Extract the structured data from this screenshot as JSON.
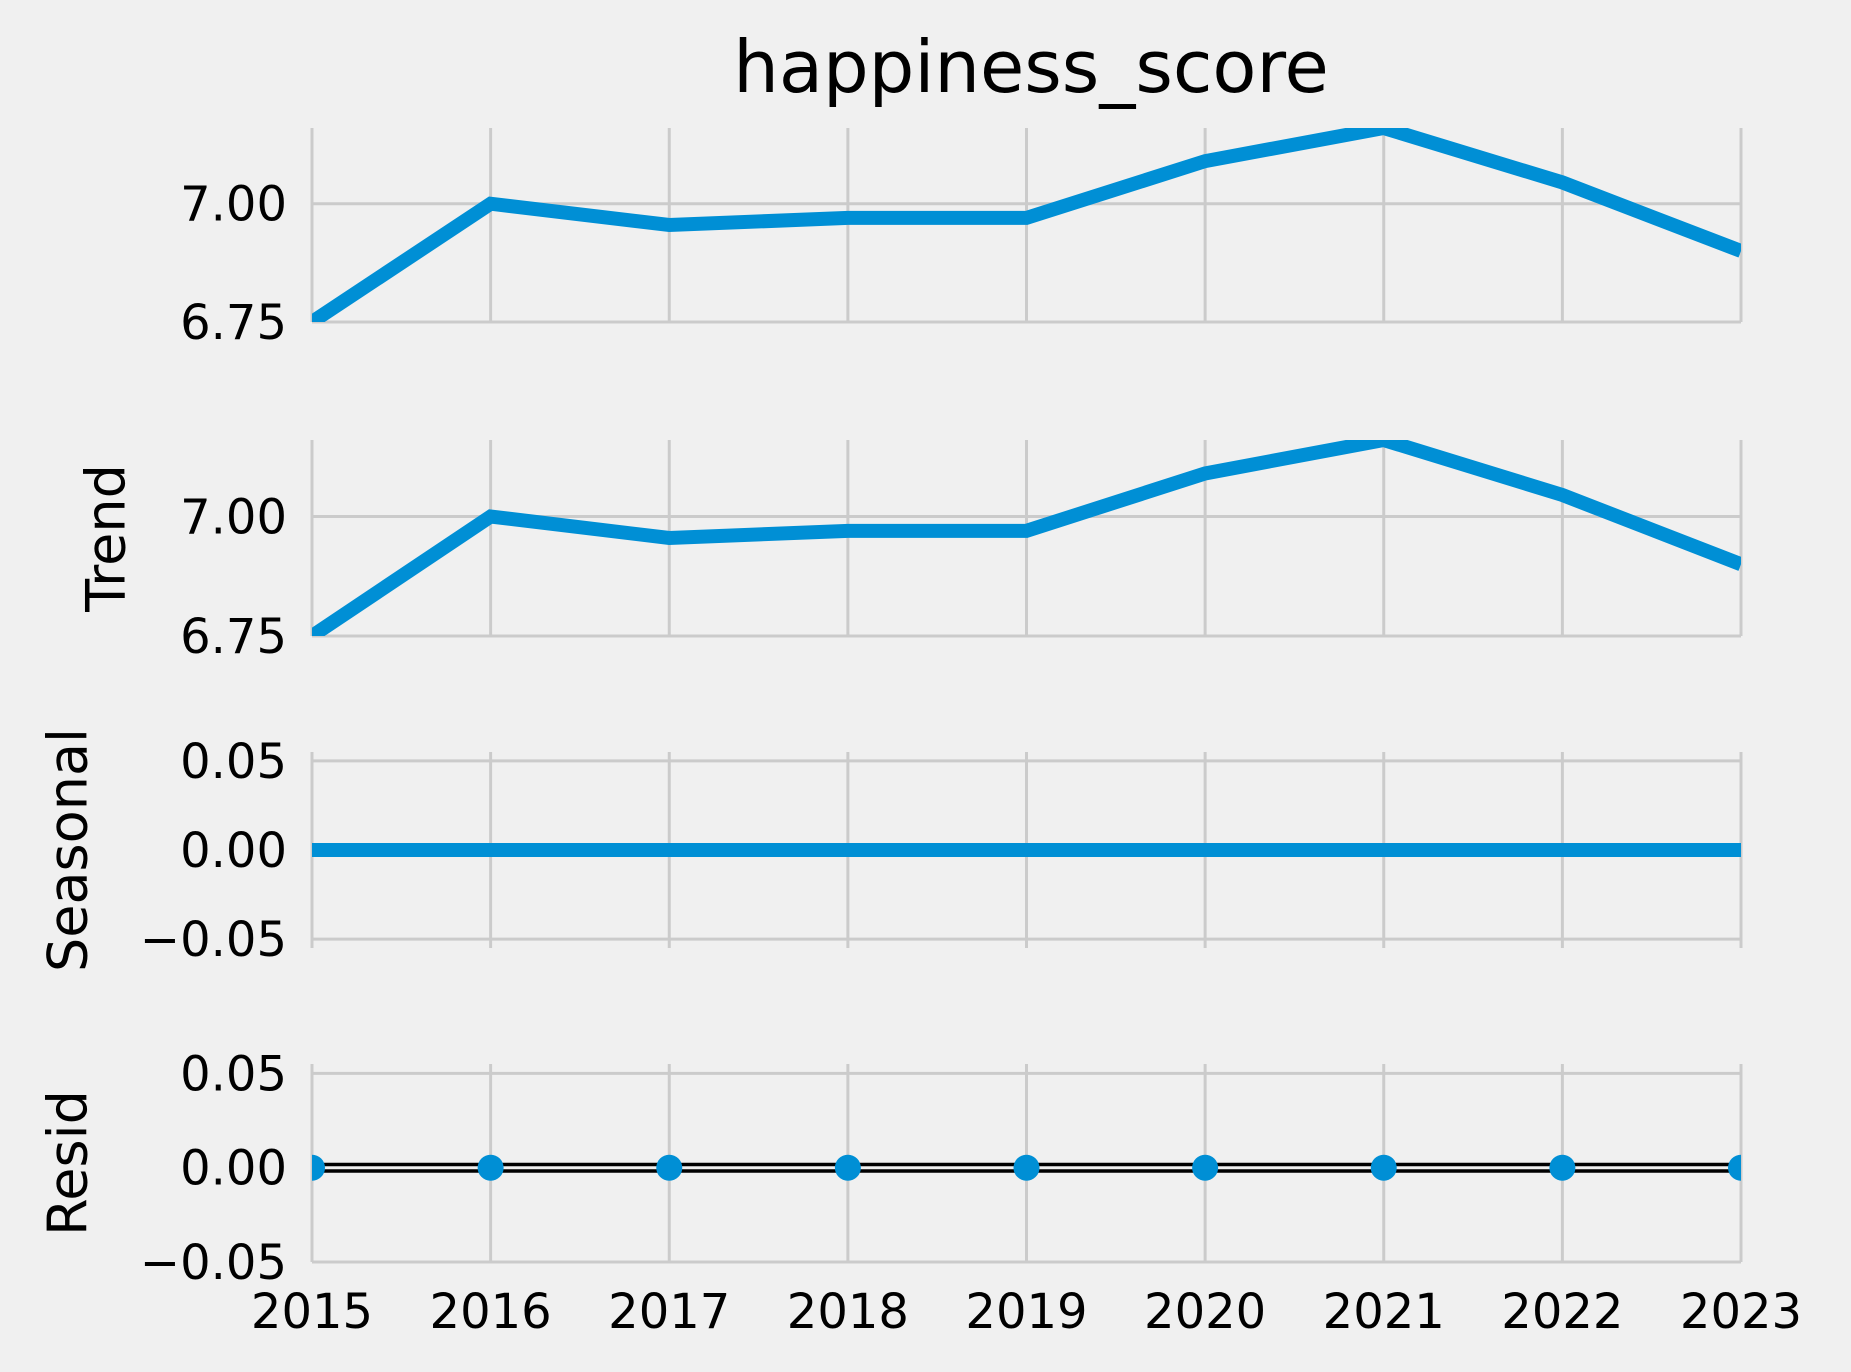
{
  "chart_data": {
    "type": "line",
    "title": "happiness_score",
    "x": [
      2015,
      2016,
      2017,
      2018,
      2019,
      2020,
      2021,
      2022,
      2023
    ],
    "x_tick_labels": [
      "2015",
      "2016",
      "2017",
      "2018",
      "2019",
      "2020",
      "2021",
      "2022",
      "2023"
    ],
    "xlim": [
      2015,
      2023
    ],
    "grid": true,
    "line_color": "#008fd5",
    "marker_color": "#008fd5",
    "zero_line_color": "#000000",
    "panels": [
      {
        "id": "observed",
        "ylabel": "",
        "type": "line",
        "values": [
          6.75,
          7.0,
          6.955,
          6.97,
          6.97,
          7.09,
          7.16,
          7.045,
          6.9
        ],
        "ylim": [
          6.75,
          7.16
        ],
        "yticks": [
          6.75,
          7.0
        ],
        "ytick_labels": [
          "6.75",
          "7.00"
        ]
      },
      {
        "id": "trend",
        "ylabel": "Trend",
        "type": "line",
        "values": [
          6.75,
          7.0,
          6.955,
          6.97,
          6.97,
          7.09,
          7.16,
          7.045,
          6.9
        ],
        "ylim": [
          6.75,
          7.16
        ],
        "yticks": [
          6.75,
          7.0
        ],
        "ytick_labels": [
          "6.75",
          "7.00"
        ]
      },
      {
        "id": "seasonal",
        "ylabel": "Seasonal",
        "type": "line",
        "values": [
          0,
          0,
          0,
          0,
          0,
          0,
          0,
          0,
          0
        ],
        "ylim": [
          -0.055,
          0.055
        ],
        "yticks": [
          -0.05,
          0.0,
          0.05
        ],
        "ytick_labels": [
          "−0.05",
          "0.00",
          "0.05"
        ]
      },
      {
        "id": "resid",
        "ylabel": "Resid",
        "type": "scatter",
        "values": [
          0,
          0,
          0,
          0,
          0,
          0,
          0,
          0,
          0
        ],
        "ylim": [
          -0.05,
          0.055
        ],
        "yticks": [
          -0.05,
          0.0,
          0.05
        ],
        "ytick_labels": [
          "−0.05",
          "0.00",
          "0.05"
        ],
        "zero_line": true
      }
    ]
  }
}
